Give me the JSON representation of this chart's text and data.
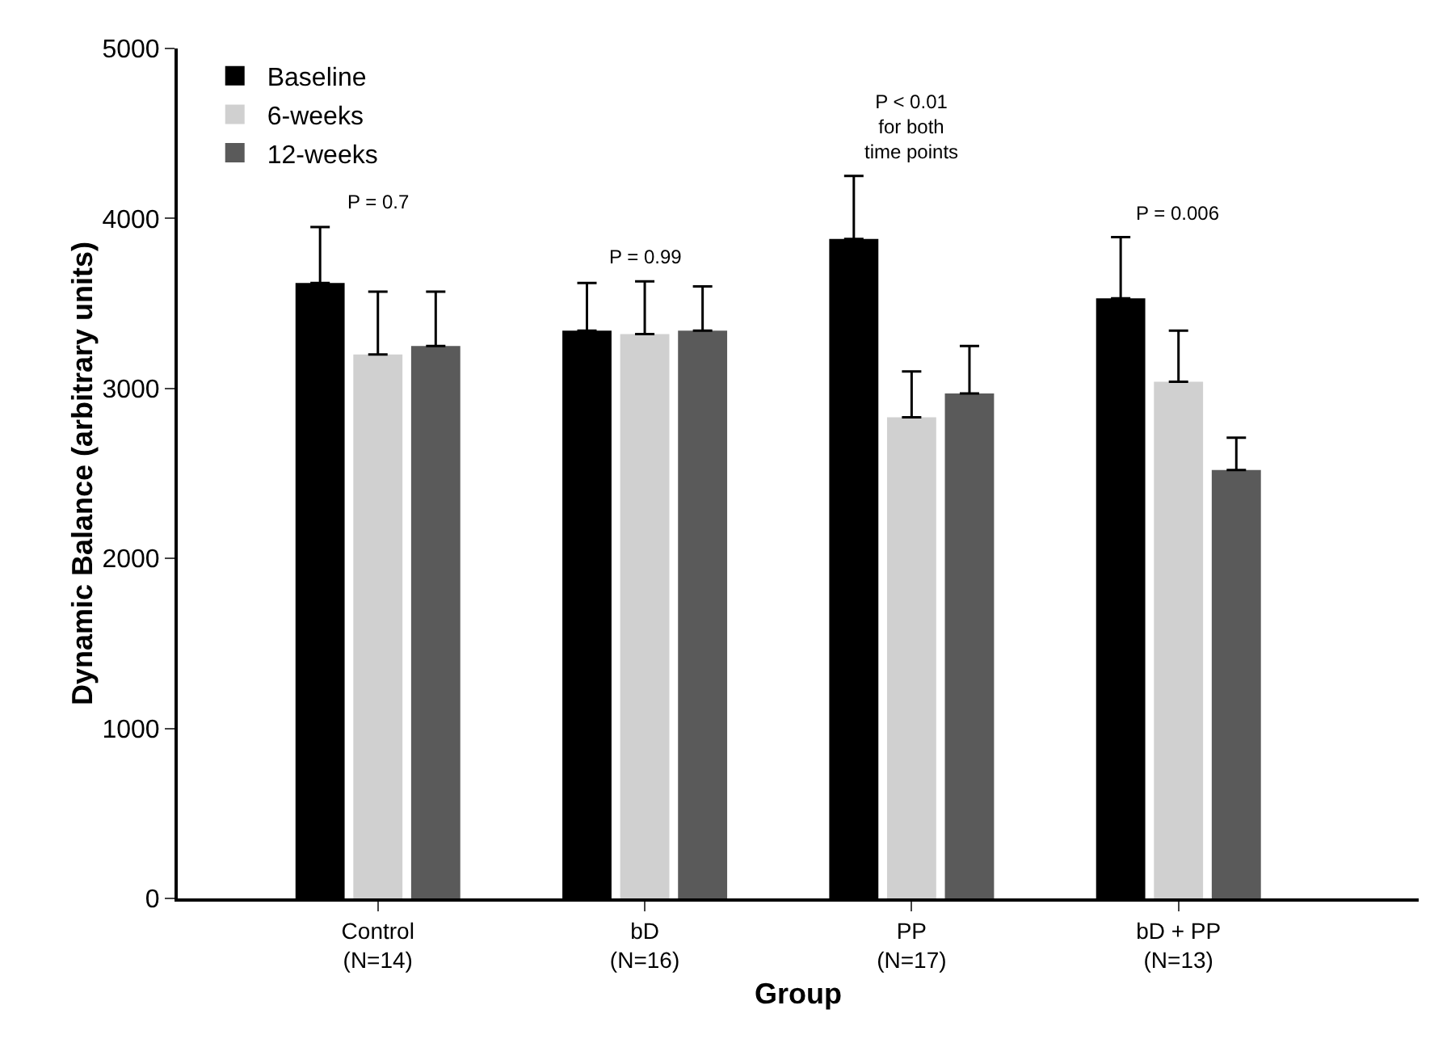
{
  "chart_data": {
    "type": "bar",
    "xlabel": "Group",
    "ylabel": "Dynamic Balance (arbitrary units)",
    "categories": [
      "Control\n(N=14)",
      "bD\n(N=16)",
      "PP\n(N=17)",
      "bD + PP\n(N=13)"
    ],
    "series": [
      {
        "name": "Baseline",
        "color": "#000000",
        "values": [
          3620,
          3340,
          3880,
          3530
        ],
        "errors": [
          [
            3620,
            3950
          ],
          [
            3340,
            3620
          ],
          [
            3880,
            4250
          ],
          [
            3530,
            3890
          ]
        ]
      },
      {
        "name": "6-weeks",
        "color": "#d0d0d0",
        "values": [
          3200,
          3320,
          2830,
          3040
        ],
        "errors": [
          [
            3200,
            3570
          ],
          [
            3320,
            3630
          ],
          [
            2830,
            3100
          ],
          [
            3040,
            3340
          ]
        ]
      },
      {
        "name": "12-weeks",
        "color": "#5a5a5a",
        "values": [
          3250,
          3340,
          2970,
          2520
        ],
        "errors": [
          [
            3250,
            3570
          ],
          [
            3340,
            3600
          ],
          [
            2970,
            3250
          ],
          [
            2520,
            2710
          ]
        ]
      }
    ],
    "ylim": [
      0,
      5000
    ],
    "yticks": [
      0,
      1000,
      2000,
      3000,
      4000,
      5000
    ],
    "grid": false,
    "legend": "top left",
    "annotations": [
      "P = 0.7",
      "P = 0.99",
      "P < 0.01\nfor both\ntime points",
      "P = 0.006"
    ]
  }
}
